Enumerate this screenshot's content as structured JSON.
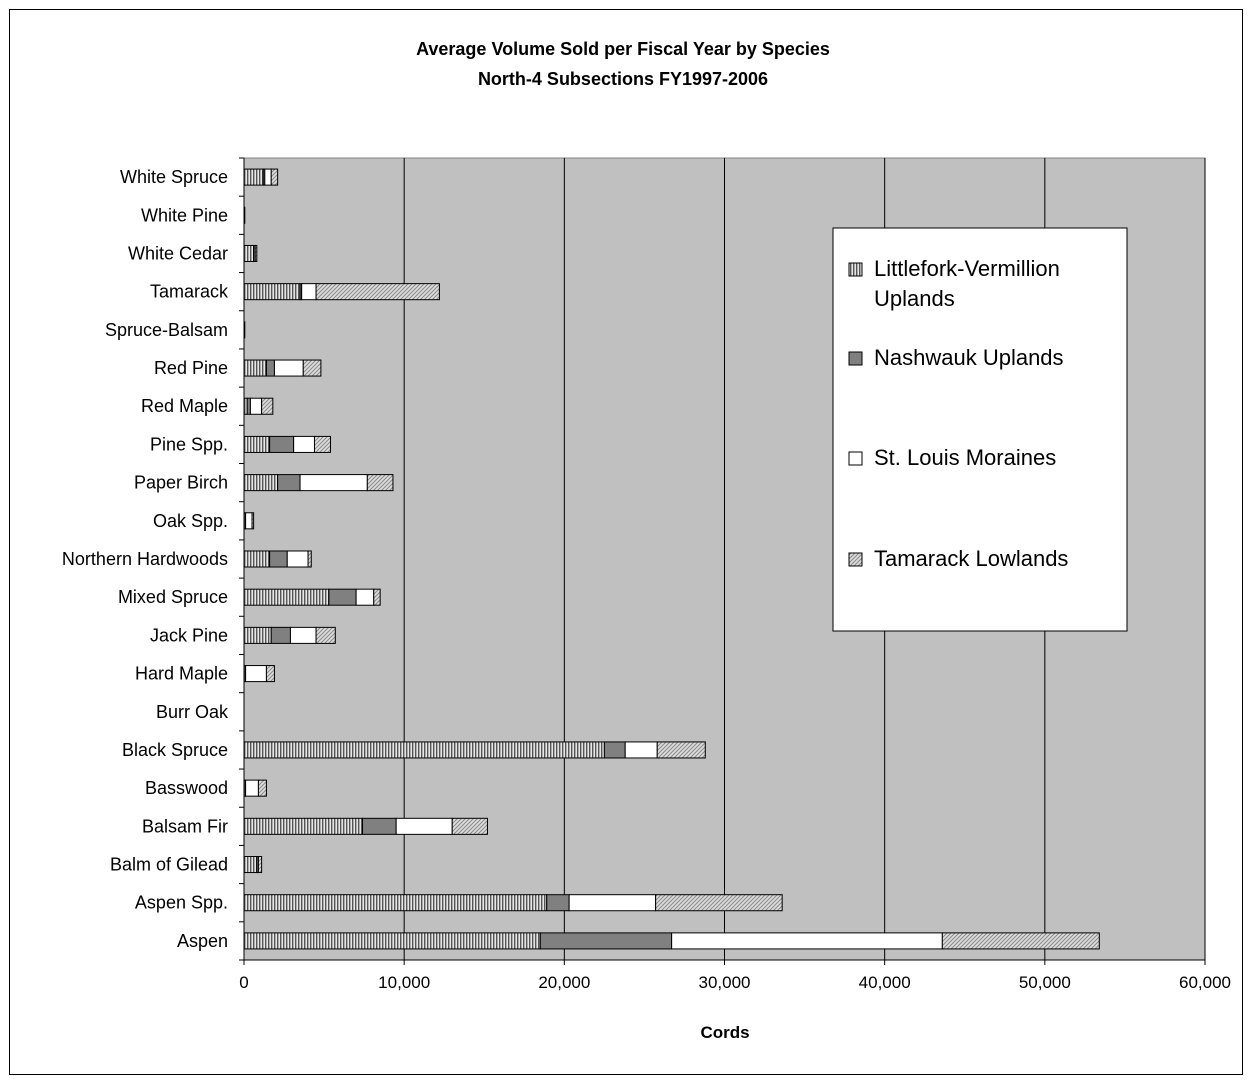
{
  "chart_data": {
    "type": "bar",
    "orientation": "horizontal",
    "stacked": true,
    "title": "Average Volume Sold per Fiscal Year by Species",
    "subtitle": "North-4 Subsections FY1997-2006",
    "xlabel": "Cords",
    "ylabel": "",
    "xlim": [
      0,
      60000
    ],
    "xticks": [
      0,
      10000,
      20000,
      30000,
      40000,
      50000,
      60000
    ],
    "xtick_labels": [
      "0",
      "10,000",
      "20,000",
      "30,000",
      "40,000",
      "50,000",
      "60,000"
    ],
    "grid": "vertical major gridlines",
    "plot_background": "#c0c0c0",
    "legend_position": "right, inside plot",
    "categories": [
      "Aspen",
      "Aspen Spp.",
      "Balm of Gilead",
      "Balsam Fir",
      "Basswood",
      "Black Spruce",
      "Burr Oak",
      "Hard Maple",
      "Jack Pine",
      "Mixed Spruce",
      "Northern Hardwoods",
      "Oak Spp.",
      "Paper Birch",
      "Pine Spp.",
      "Red Maple",
      "Red Pine",
      "Spruce-Balsam",
      "Tamarack",
      "White Cedar",
      "White Pine",
      "White Spruce"
    ],
    "series": [
      {
        "name": "Littlefork-Vermillion Uplands",
        "pattern": "vertical-stripes",
        "color": "#b0b0b0",
        "values": [
          18500,
          18900,
          800,
          7400,
          100,
          22500,
          0,
          100,
          1700,
          5300,
          1600,
          100,
          2100,
          1600,
          200,
          1400,
          50,
          3500,
          600,
          50,
          1200
        ]
      },
      {
        "name": "Nashwauk Uplands",
        "pattern": "solid",
        "color": "#808080",
        "values": [
          8200,
          1400,
          100,
          2100,
          0,
          1300,
          0,
          0,
          1200,
          1700,
          1100,
          0,
          1400,
          1500,
          200,
          500,
          0,
          100,
          100,
          0,
          100
        ]
      },
      {
        "name": "St. Louis Moraines",
        "pattern": "solid",
        "color": "#ffffff",
        "values": [
          16900,
          5400,
          0,
          3500,
          800,
          2000,
          0,
          1300,
          1600,
          1100,
          1300,
          400,
          4200,
          1300,
          700,
          1800,
          0,
          900,
          0,
          0,
          400
        ]
      },
      {
        "name": "Tamarack Lowlands",
        "pattern": "diagonal-fine",
        "color": "#d0d0d0",
        "values": [
          9800,
          7900,
          200,
          2200,
          500,
          3000,
          0,
          500,
          1200,
          400,
          200,
          100,
          1600,
          1000,
          700,
          1100,
          0,
          7700,
          100,
          0,
          400
        ]
      }
    ]
  }
}
